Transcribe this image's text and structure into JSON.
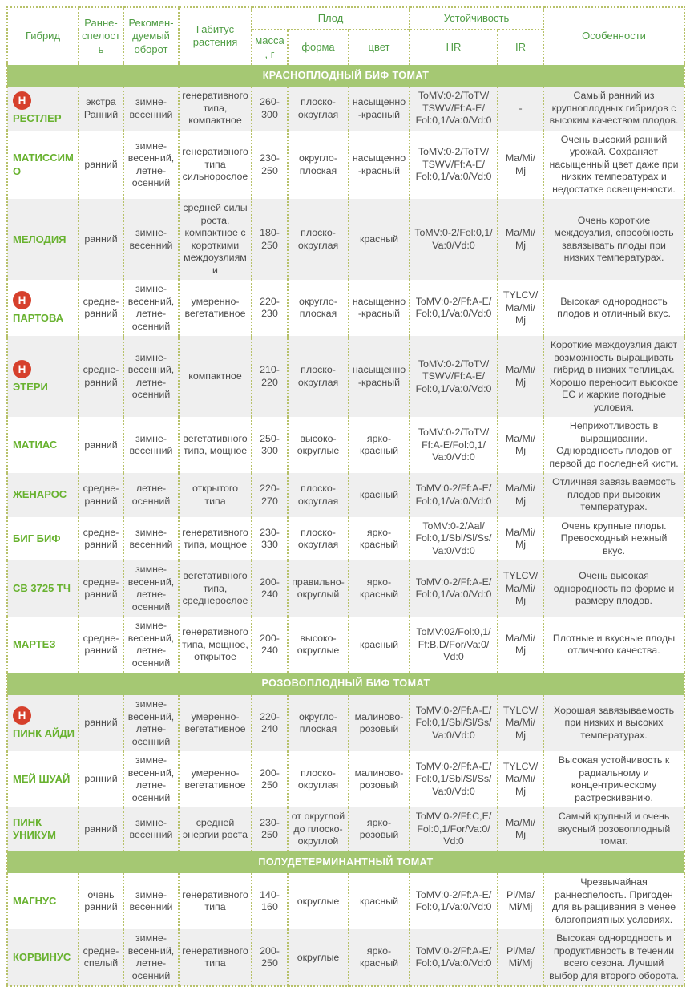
{
  "header": {
    "hybrid": "Гибрид",
    "earliness": "Ранне-спелость",
    "rotation": "Рекомен-дуемый оборот",
    "habitus": "Габитус растения",
    "fruit": "Плод",
    "mass": "масса, г",
    "shape": "форма",
    "color": "цвет",
    "resistance": "Устойчивость",
    "hr": "HR",
    "ir": "IR",
    "features": "Особенности"
  },
  "accent_colors": {
    "header_green": "#4f9d44",
    "name_green": "#68b22f",
    "band_green": "#a5c873",
    "badge_red": "#d6402c",
    "border_olive": "#b7c169",
    "shaded_row": "#efefef"
  },
  "sections": [
    {
      "title": "КРАСНОПЛОДНЫЙ БИФ ТОМАТ",
      "rows": [
        {
          "badge": "Н",
          "name": "РЕСТЛЕР",
          "early": "экстра Ранний",
          "rot": "зимне-весенний",
          "hab": "генеративного типа, компактное",
          "mass": "260-300",
          "shape": "плоско-округлая",
          "color": "насыщенно-красный",
          "hr": "ToMV:0-2/ToTV/TSWV/Ff:A-E/Fol:0,1/Va:0/Vd:0",
          "ir": "-",
          "feat": "Самый ранний из крупноплодных гибридов с высоким качеством плодов."
        },
        {
          "badge": "",
          "name": "МАТИССИМО",
          "early": "ранний",
          "rot": "зимне-весенний, летне-осенний",
          "hab": "генеративного типа сильнорослое",
          "mass": "230-250",
          "shape": "округло-плоская",
          "color": "насыщенно-красный",
          "hr": "ToMV:0-2/ToTV/TSWV/Ff:A-E/Fol:0,1/Va:0/Vd:0",
          "ir": "Ma/Mi/Mj",
          "feat": "Очень высокий ранний урожай. Сохраняет насыщенный цвет даже при низких температурах и недостатке освещенности."
        },
        {
          "badge": "",
          "name": "МЕЛОДИЯ",
          "early": "ранний",
          "rot": "зимне-весенний",
          "hab": "средней силы роста, компактное с короткими междоузлиями",
          "mass": "180-250",
          "shape": "плоско-округлая",
          "color": "красный",
          "hr": "ToMV:0-2/Fol:0,1/Va:0/Vd:0",
          "ir": "Ma/Mi/Mj",
          "feat": "Очень короткие междоузлия, способность завязывать плоды при низких температурах."
        },
        {
          "badge": "Н",
          "name": "ПАРТОВА",
          "early": "средне-ранний",
          "rot": "зимне-весенний, летне-осенний",
          "hab": "умеренно-вегетативное",
          "mass": "220-230",
          "shape": "округло-плоская",
          "color": "насыщенно-красный",
          "hr": "ToMV:0-2/Ff:A-E/Fol:0,1/Va:0/Vd:0",
          "ir": "TYLCV/Ma/Mi/Mj",
          "feat": "Высокая однородность плодов и отличный вкус."
        },
        {
          "badge": "Н",
          "name": "ЭТЕРИ",
          "early": "средне-ранний",
          "rot": "зимне-весенний, летне-осенний",
          "hab": "компактное",
          "mass": "210-220",
          "shape": "плоско-округлая",
          "color": "насыщенно-красный",
          "hr": "ToMV:0-2/ToTV/TSWV/Ff:A-E/Fol:0,1/Va:0/Vd:0",
          "ir": "Ma/Mi/Mj",
          "feat": "Короткие междоузлия дают возможность выращивать гибрид в низких теплицах. Хорошо переносит высокое ЕС и жаркие погодные условия."
        },
        {
          "badge": "",
          "name": "МАТИАС",
          "early": "ранний",
          "rot": "зимне-весенний",
          "hab": "вегетативного типа, мощное",
          "mass": "250-300",
          "shape": "высоко-округлые",
          "color": "ярко-красный",
          "hr": "ToMV:0-2/ToTV/Ff:A-E/Fol:0,1/Va:0/Vd:0",
          "ir": "Ma/Mi/Mj",
          "feat": "Неприхотливость в выращивании. Однородность плодов от первой до последней кисти."
        },
        {
          "badge": "",
          "name": "ЖЕНАРОС",
          "early": "средне-ранний",
          "rot": "летне-осенний",
          "hab": "открытого типа",
          "mass": "220-270",
          "shape": "плоско-округлая",
          "color": "красный",
          "hr": "ToMV:0-2/Ff:A-E/Fol:0,1/Va:0/Vd:0",
          "ir": "Ma/Mi/Mj",
          "feat": "Отличная завязываемость плодов при высоких температурах."
        },
        {
          "badge": "",
          "name": "БИГ БИФ",
          "early": "средне-ранний",
          "rot": "зимне-весенний",
          "hab": "генеративного типа, мощное",
          "mass": "230-330",
          "shape": "плоско-округлая",
          "color": "ярко-красный",
          "hr": "ToMV:0-2/Aal/Fol:0,1/Sbl/Sl/Ss/Va:0/Vd:0",
          "ir": "Ma/Mi/Mj",
          "feat": "Очень крупные плоды. Превосходный нежный вкус."
        },
        {
          "badge": "",
          "name": "СВ 3725 ТЧ",
          "early": "средне-ранний",
          "rot": "зимне-весенний, летне-осенний",
          "hab": "вегетативного типа, среднерослое",
          "mass": "200-240",
          "shape": "правильно-округлый",
          "color": "ярко-красный",
          "hr": "ToMV:0-2/Ff:A-E/Fol:0,1/Va:0/Vd:0",
          "ir": "TYLCV/Ma/Mi/Mj",
          "feat": "Очень высокая однородность по форме и размеру плодов."
        },
        {
          "badge": "",
          "name": "МАРТЕЗ",
          "early": "средне-ранний",
          "rot": "зимне-весенний, летне-осенний",
          "hab": "генеративного типа, мощное, открытое",
          "mass": "200-240",
          "shape": "высоко-округлые",
          "color": "красный",
          "hr": "ToMV:02/Fol:0,1/Ff:B,D/For/Va:0/Vd:0",
          "ir": "Ma/Mi/Mj",
          "feat": "Плотные и вкусные плоды отличного качества."
        }
      ]
    },
    {
      "title": "РОЗОВОПЛОДНЫЙ БИФ ТОМАТ",
      "rows": [
        {
          "badge": "Н",
          "name": "ПИНК АЙДИ",
          "early": "ранний",
          "rot": "зимне-весенний, летне-осенний",
          "hab": "умеренно-вегетативное",
          "mass": "220-240",
          "shape": "округло-плоская",
          "color": "малиново-розовый",
          "hr": "ToMV:0-2/Ff:A-E/Fol:0,1/Sbl/Sl/Ss/Va:0/Vd:0",
          "ir": "TYLCV/Ma/Mi/Mj",
          "feat": "Хорошая завязываемость при низких и высоких температурах."
        },
        {
          "badge": "",
          "name": "МЕЙ ШУАЙ",
          "early": "ранний",
          "rot": "зимне-весенний, летне-осенний",
          "hab": "умеренно-вегетативное",
          "mass": "200-250",
          "shape": "плоско-округлая",
          "color": "малиново-розовый",
          "hr": "ToMV:0-2/Ff:A-E/Fol:0,1/Sbl/Sl/Ss/Va:0/Vd:0",
          "ir": "TYLCV/Ma/Mi/Mj",
          "feat": "Высокая устойчивость к радиальному и концентрическому растрескиванию."
        },
        {
          "badge": "",
          "name": "ПИНК УНИКУМ",
          "early": "ранний",
          "rot": "зимне-весенний",
          "hab": "средней энергии роста",
          "mass": "230-250",
          "shape": "от округлой до плоско-округлой",
          "color": "ярко-розовый",
          "hr": "ToMV:0-2/Ff:C,E/Fol:0,1/For/Va:0/Vd:0",
          "ir": "Ma/Mi/Mj",
          "feat": "Самый крупный и очень вкусный розовоплодный томат."
        }
      ]
    },
    {
      "title": "ПОЛУДЕТЕРМИНАНТНЫЙ ТОМАТ",
      "rows": [
        {
          "badge": "",
          "name": "МАГНУС",
          "early": "очень ранний",
          "rot": "зимне-весенний",
          "hab": "генеративного типа",
          "mass": "140-160",
          "shape": "округлые",
          "color": "красный",
          "hr": "ToMV:0-2/Ff:A-E/Fol:0,1/Va:0/Vd:0",
          "ir": "Pi/Ma/Mi/Mj",
          "feat": "Чрезвычайная раннеспелость. Пригоден для выращивания в менее благоприятных условиях."
        },
        {
          "badge": "",
          "name": "КОРВИНУС",
          "early": "средне-спелый",
          "rot": "зимне-весенний, летне-осенний",
          "hab": "генеративного типа",
          "mass": "200-250",
          "shape": "округлые",
          "color": "ярко-красный",
          "hr": "ToMV:0-2/Ff:A-E/Fol:0,1/Va:0/Vd:0",
          "ir": "Pl/Ma/Mi/Mj",
          "feat": "Высокая однородность и продуктивность в течении всего сезона. Лучший выбор для второго оборота."
        }
      ]
    }
  ]
}
